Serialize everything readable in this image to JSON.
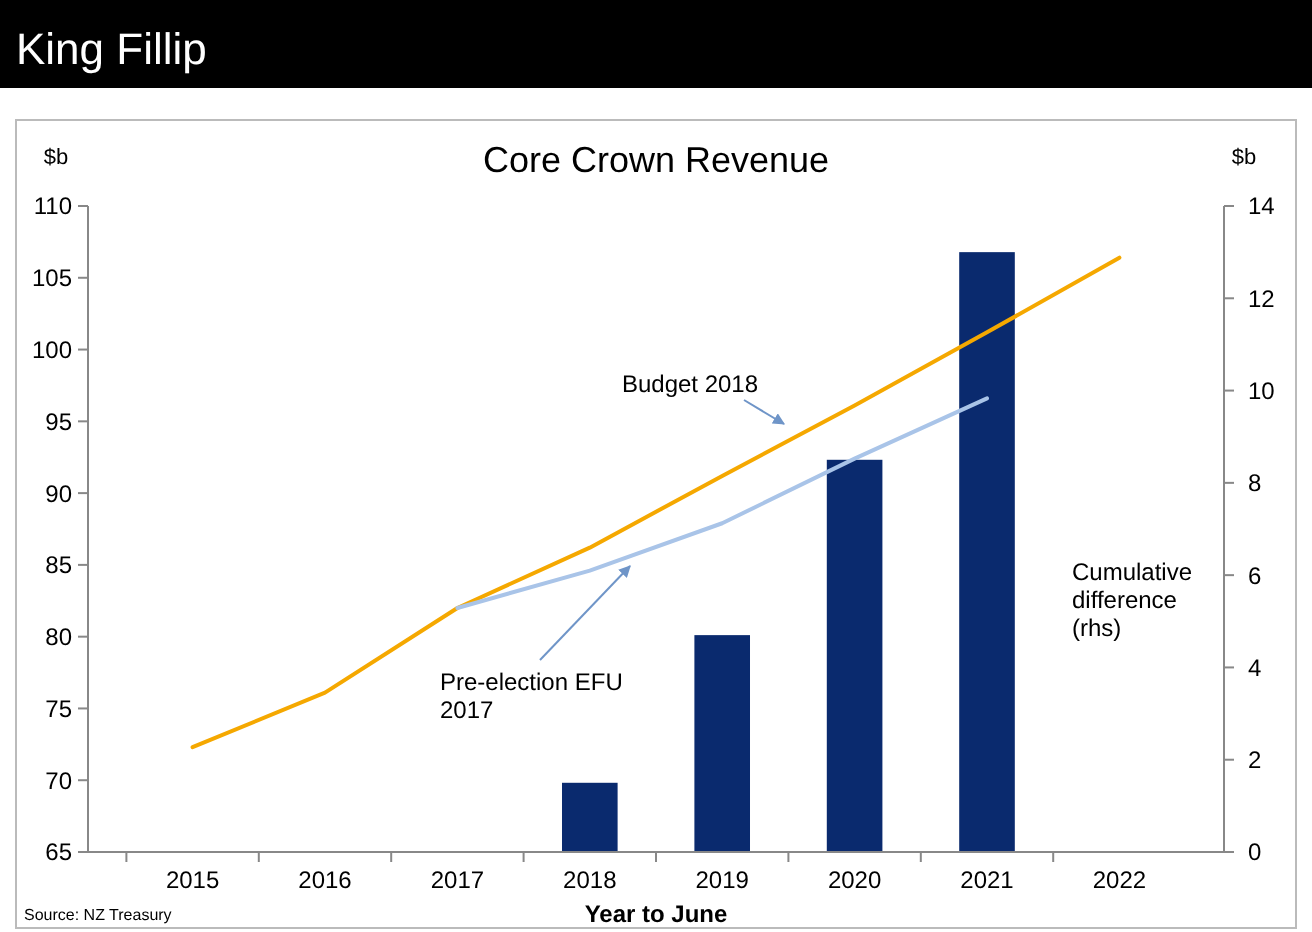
{
  "chart_data": {
    "type": "line",
    "title": "King Fillip",
    "subtitle": "Core Crown Revenue",
    "xlabel": "Year to June",
    "ylabel": "$b",
    "y2label": "$b",
    "categories": [
      "2015",
      "2016",
      "2017",
      "2018",
      "2019",
      "2020",
      "2021",
      "2022"
    ],
    "ylim": [
      65,
      110
    ],
    "yticks": [
      65,
      70,
      75,
      80,
      85,
      90,
      95,
      100,
      105,
      110
    ],
    "y2lim": [
      0,
      14
    ],
    "y2ticks": [
      0,
      2,
      4,
      6,
      8,
      10,
      12,
      14
    ],
    "series": [
      {
        "name": "Cumulative difference (rhs)",
        "type": "bar",
        "axis": "y2",
        "color": "#0a2a6e",
        "values": [
          null,
          null,
          null,
          1.5,
          4.7,
          8.5,
          13.0,
          null
        ]
      },
      {
        "name": "Budget 2018",
        "color": "#f5a800",
        "values": [
          72.3,
          76.1,
          82.0,
          86.2,
          91.2,
          96.1,
          101.2,
          106.4
        ]
      },
      {
        "name": "Pre-election EFU 2017",
        "color": "#a9c4e8",
        "values": [
          null,
          null,
          82.0,
          84.6,
          87.9,
          92.4,
          96.6,
          null
        ]
      }
    ],
    "annotations": [
      "Source: NZ Treasury"
    ]
  }
}
